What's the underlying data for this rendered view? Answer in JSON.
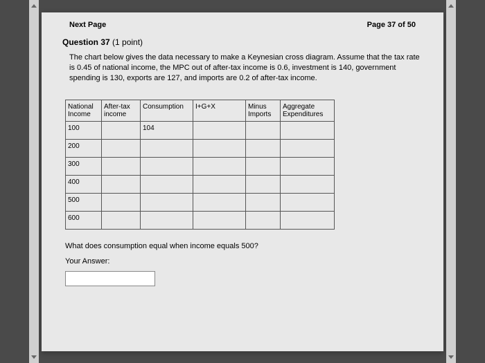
{
  "header": {
    "next_page": "Next Page",
    "page_indicator": "Page 37 of 50"
  },
  "question": {
    "title_prefix": "Question 37",
    "title_suffix": " (1 point)",
    "description": "The chart below gives the data necessary to make a Keynesian cross diagram. Assume that the tax rate is 0.45 of national income, the MPC out of after-tax income is 0.6, investment is 140, government spending is 130, exports are 127, and imports are 0.2 of after-tax income."
  },
  "table": {
    "headers": [
      "National Income",
      "After-tax income",
      "Consumption",
      "I+G+X",
      "Minus Imports",
      "Aggregate Expenditures"
    ],
    "rows": [
      [
        "100",
        "",
        "104",
        "",
        "",
        ""
      ],
      [
        "200",
        "",
        "",
        "",
        "",
        ""
      ],
      [
        "300",
        "",
        "",
        "",
        "",
        ""
      ],
      [
        "400",
        "",
        "",
        "",
        "",
        ""
      ],
      [
        "500",
        "",
        "",
        "",
        "",
        ""
      ],
      [
        "600",
        "",
        "",
        "",
        "",
        ""
      ]
    ]
  },
  "sub_question": "What does consumption equal when income equals 500?",
  "answer_label": "Your Answer:",
  "answer_value": ""
}
